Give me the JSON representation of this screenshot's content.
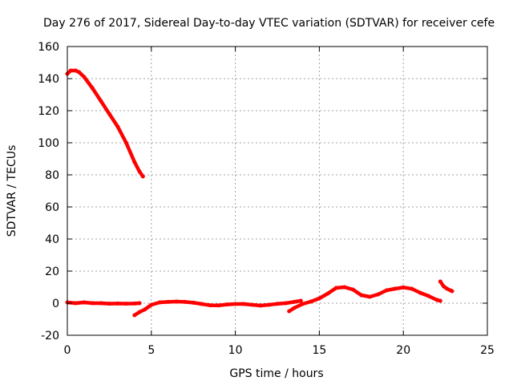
{
  "chart_data": {
    "type": "line",
    "title": "Day 276 of 2017, Sidereal Day-to-day VTEC variation (SDTVAR) for receiver cefe",
    "xlabel": "GPS time / hours",
    "ylabel": "SDTVAR / TECUs",
    "xlim": [
      0,
      25
    ],
    "ylim": [
      -20,
      160
    ],
    "xticks": [
      0,
      5,
      10,
      15,
      20,
      25
    ],
    "yticks": [
      -20,
      0,
      20,
      40,
      60,
      80,
      100,
      120,
      140,
      160
    ],
    "xtick_labels": [
      "0",
      "5",
      "10",
      "15",
      "20",
      "25"
    ],
    "ytick_labels": [
      "-20",
      "0",
      "20",
      "40",
      "60",
      "80",
      "100",
      "120",
      "140",
      "160"
    ],
    "grid": true,
    "legend": "none",
    "line_color": "#ff0000",
    "series": [
      {
        "x": [
          0.0,
          0.2,
          0.5,
          0.7,
          1.0,
          1.5,
          2.0,
          2.5,
          3.0,
          3.5,
          4.0,
          4.3,
          4.5
        ],
        "y": [
          143,
          145,
          145,
          144,
          141,
          134,
          126,
          118,
          110,
          100,
          88,
          82,
          79
        ]
      },
      {
        "x": [
          0.0,
          0.5,
          1.0,
          1.5,
          2.0,
          2.5,
          3.0,
          3.5,
          4.0,
          4.3
        ],
        "y": [
          0.5,
          0,
          0.5,
          0,
          0,
          -0.3,
          -0.2,
          -0.3,
          -0.2,
          0
        ]
      },
      {
        "x": [
          4.0,
          4.3,
          4.6,
          5.0,
          5.5,
          6.0,
          6.5,
          7.0,
          7.5,
          8.0,
          8.5,
          9.0,
          9.5,
          10.0,
          10.5,
          11.0,
          11.5,
          12.0,
          12.5,
          13.0,
          13.5,
          13.9
        ],
        "y": [
          -7.5,
          -5.5,
          -4,
          -1,
          0.5,
          0.8,
          1.0,
          0.8,
          0.3,
          -0.5,
          -1.3,
          -1.4,
          -0.8,
          -0.5,
          -0.5,
          -1.0,
          -1.5,
          -1.0,
          -0.4,
          0,
          0.8,
          1.5
        ]
      },
      {
        "x": [
          13.2,
          13.5,
          14.0,
          14.5,
          15.0,
          15.5,
          16.0,
          16.5,
          17.0,
          17.5,
          18.0,
          18.5,
          19.0,
          19.5,
          20.0,
          20.5,
          21.0,
          21.5,
          22.0,
          22.2
        ],
        "y": [
          -5,
          -3,
          -0.5,
          1,
          3,
          6,
          9.5,
          10,
          8.5,
          5,
          4,
          5.5,
          8,
          9,
          9.8,
          9,
          6.5,
          4.5,
          2,
          1.5
        ]
      },
      {
        "x": [
          22.2,
          22.4,
          22.6,
          22.8,
          22.9
        ],
        "y": [
          13.5,
          10.5,
          9,
          8,
          7.5
        ]
      }
    ]
  }
}
